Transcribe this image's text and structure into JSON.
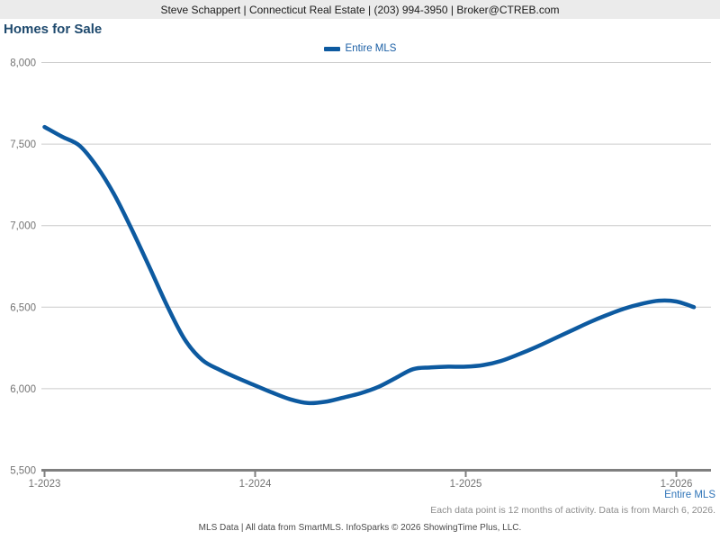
{
  "header": {
    "text": "Steve Schappert | Connecticut Real Estate | (203) 994-3950 | Broker@CTREB.com"
  },
  "title": "Homes for Sale",
  "legend": {
    "label": "Entire MLS"
  },
  "footer": {
    "series_label": "Entire MLS",
    "note": "Each data point is 12 months of activity. Data is from March 6, 2026.",
    "credit": "MLS Data | All data from SmartMLS. InfoSparks © 2026 ShowingTime Plus, LLC."
  },
  "colors": {
    "header_bg": "#ebebeb",
    "title_text": "#1f4a6e",
    "line": "#0d5aa0",
    "legend_text": "#1b5fa5",
    "series_label_text": "#2f74b8",
    "grid": "#cccccc",
    "axis": "#7f7f7f",
    "tick_label": "#737373"
  },
  "chart_data": {
    "type": "line",
    "title": "Homes for Sale",
    "x": [
      "1-2023",
      "2-2023",
      "3-2023",
      "4-2023",
      "5-2023",
      "6-2023",
      "7-2023",
      "8-2023",
      "9-2023",
      "10-2023",
      "11-2023",
      "12-2023",
      "1-2024",
      "2-2024",
      "3-2024",
      "4-2024",
      "5-2024",
      "6-2024",
      "7-2024",
      "8-2024",
      "9-2024",
      "10-2024",
      "11-2024",
      "12-2024",
      "1-2025",
      "2-2025",
      "3-2025",
      "4-2025",
      "5-2025",
      "6-2025",
      "7-2025",
      "8-2025",
      "9-2025",
      "10-2025",
      "11-2025",
      "12-2025",
      "1-2026",
      "2-2026"
    ],
    "series": [
      {
        "name": "Entire MLS",
        "values": [
          7605,
          7545,
          7490,
          7360,
          7185,
          6970,
          6740,
          6505,
          6300,
          6175,
          6115,
          6065,
          6020,
          5975,
          5935,
          5912,
          5920,
          5945,
          5972,
          6010,
          6065,
          6120,
          6130,
          6135,
          6135,
          6145,
          6170,
          6210,
          6255,
          6305,
          6355,
          6405,
          6450,
          6490,
          6520,
          6540,
          6535,
          6500
        ]
      }
    ],
    "xticks": {
      "labels": [
        "1-2023",
        "1-2024",
        "1-2025",
        "1-2026"
      ],
      "indices": [
        0,
        12,
        24,
        36
      ]
    },
    "yticks": [
      5500,
      6000,
      6500,
      7000,
      7500,
      8000
    ],
    "ylim": [
      5500,
      8000
    ],
    "grid": true,
    "legend_position": "top-center"
  }
}
